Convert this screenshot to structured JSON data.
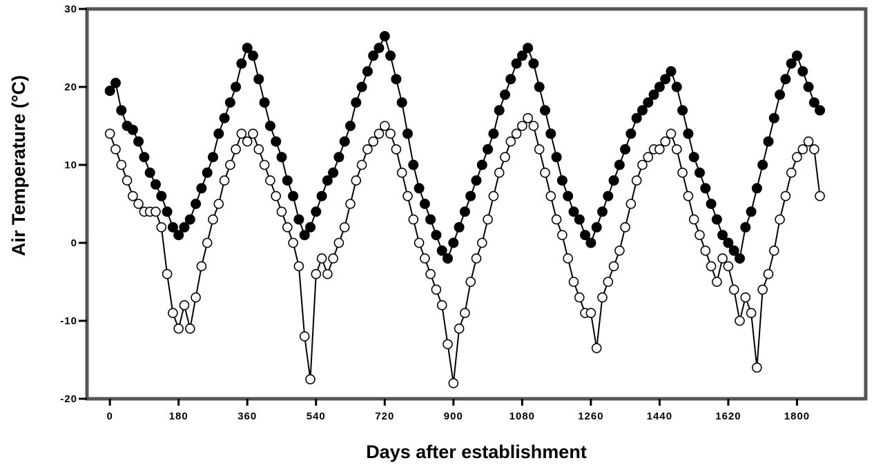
{
  "chart_data": {
    "type": "line",
    "title": "",
    "xlabel": "Days after establishment",
    "ylabel": "Air Temperature (°C)",
    "xlim": [
      -60,
      1980
    ],
    "ylim": [
      -20,
      30
    ],
    "x_ticks": [
      0,
      180,
      360,
      540,
      720,
      900,
      1080,
      1260,
      1440,
      1620,
      1800
    ],
    "x_tick_labels": [
      "0",
      "180",
      "360",
      "540",
      "720",
      "900",
      "1080",
      "1260",
      "1440",
      "1620",
      "1800"
    ],
    "y_ticks": [
      -20,
      -10,
      0,
      10,
      20,
      30
    ],
    "y_tick_labels": [
      "-20",
      "-10",
      "0",
      "10",
      "20",
      "30"
    ],
    "grid": false,
    "legend": "none",
    "series": [
      {
        "marker": "filled-circle",
        "x": [
          0,
          15,
          30,
          45,
          60,
          75,
          90,
          105,
          120,
          135,
          150,
          165,
          180,
          195,
          210,
          225,
          240,
          255,
          270,
          285,
          300,
          315,
          330,
          345,
          360,
          375,
          390,
          405,
          420,
          435,
          450,
          465,
          480,
          495,
          510,
          525,
          540,
          555,
          570,
          585,
          600,
          615,
          630,
          645,
          660,
          675,
          690,
          705,
          720,
          735,
          750,
          765,
          780,
          795,
          810,
          825,
          840,
          855,
          870,
          885,
          900,
          915,
          930,
          945,
          960,
          975,
          990,
          1005,
          1020,
          1035,
          1050,
          1065,
          1080,
          1095,
          1110,
          1125,
          1140,
          1155,
          1170,
          1185,
          1200,
          1215,
          1230,
          1245,
          1260,
          1275,
          1290,
          1305,
          1320,
          1335,
          1350,
          1365,
          1380,
          1395,
          1410,
          1425,
          1440,
          1455,
          1470,
          1485,
          1500,
          1515,
          1530,
          1545,
          1560,
          1575,
          1590,
          1605,
          1620,
          1635,
          1650,
          1665,
          1680,
          1695,
          1710,
          1725,
          1740,
          1755,
          1770,
          1785,
          1800,
          1815,
          1830,
          1845,
          1860
        ],
        "y": [
          19.5,
          20.5,
          17,
          15,
          14.5,
          13,
          11,
          9,
          7.5,
          6,
          4,
          2,
          1,
          2,
          3,
          5,
          7,
          9,
          11,
          14,
          16,
          18,
          20,
          23,
          25,
          24,
          21,
          18,
          15,
          13,
          11,
          8,
          6,
          3,
          1,
          2,
          4,
          6,
          8,
          9,
          11,
          13,
          15,
          18,
          20,
          22,
          24,
          25,
          26.5,
          24,
          21,
          18,
          14,
          10,
          7,
          5,
          3,
          1,
          -1,
          -2,
          0,
          2,
          4,
          6,
          8,
          10,
          12,
          14,
          17,
          19,
          21,
          23,
          24,
          25,
          23,
          20,
          17,
          14,
          11,
          8,
          6,
          4,
          3,
          1,
          0,
          2,
          4,
          6,
          8,
          10,
          12,
          14,
          16,
          17,
          18,
          19,
          20,
          21,
          22,
          20,
          17,
          14,
          11,
          9,
          7,
          5,
          3,
          1,
          0,
          -1,
          -2,
          2,
          4,
          7,
          10,
          13,
          16,
          19,
          21,
          23,
          24,
          22,
          20,
          18,
          17
        ]
      },
      {
        "marker": "open-circle",
        "x": [
          0,
          15,
          30,
          45,
          60,
          75,
          90,
          105,
          120,
          135,
          150,
          165,
          180,
          195,
          210,
          225,
          240,
          255,
          270,
          285,
          300,
          315,
          330,
          345,
          360,
          375,
          390,
          405,
          420,
          435,
          450,
          465,
          480,
          495,
          510,
          525,
          540,
          555,
          570,
          585,
          600,
          615,
          630,
          645,
          660,
          675,
          690,
          705,
          720,
          735,
          750,
          765,
          780,
          795,
          810,
          825,
          840,
          855,
          870,
          885,
          900,
          915,
          930,
          945,
          960,
          975,
          990,
          1005,
          1020,
          1035,
          1050,
          1065,
          1080,
          1095,
          1110,
          1125,
          1140,
          1155,
          1170,
          1185,
          1200,
          1215,
          1230,
          1245,
          1260,
          1275,
          1290,
          1305,
          1320,
          1335,
          1350,
          1365,
          1380,
          1395,
          1410,
          1425,
          1440,
          1455,
          1470,
          1485,
          1500,
          1515,
          1530,
          1545,
          1560,
          1575,
          1590,
          1605,
          1620,
          1635,
          1650,
          1665,
          1680,
          1695,
          1710,
          1725,
          1740,
          1755,
          1770,
          1785,
          1800,
          1815,
          1830,
          1845,
          1860
        ],
        "y": [
          14,
          12,
          10,
          8,
          6,
          5,
          4,
          4,
          4,
          2,
          -4,
          -9,
          -11,
          -8,
          -11,
          -7,
          -3,
          0,
          3,
          5,
          8,
          10,
          12,
          14,
          13,
          14,
          12,
          10,
          8,
          6,
          4,
          2,
          0,
          -3,
          -12,
          -17.5,
          -4,
          -2,
          -4,
          -2,
          0,
          2,
          5,
          8,
          10,
          12,
          13,
          14,
          15,
          14,
          12,
          9,
          6,
          3,
          0,
          -2,
          -4,
          -6,
          -8,
          -13,
          -18,
          -11,
          -9,
          -5,
          -2,
          0,
          3,
          6,
          9,
          11,
          13,
          14,
          15,
          16,
          15,
          12,
          9,
          6,
          3,
          1,
          -2,
          -5,
          -7,
          -9,
          -9,
          -13.5,
          -7,
          -5,
          -3,
          -1,
          2,
          5,
          8,
          10,
          11,
          12,
          12,
          13,
          14,
          12,
          9,
          6,
          3,
          1,
          -1,
          -3,
          -5,
          -2,
          -3,
          -6,
          -10,
          -7,
          -9,
          -16,
          -6,
          -4,
          -1,
          3,
          6,
          9,
          11,
          12,
          13,
          12,
          6
        ]
      }
    ]
  }
}
